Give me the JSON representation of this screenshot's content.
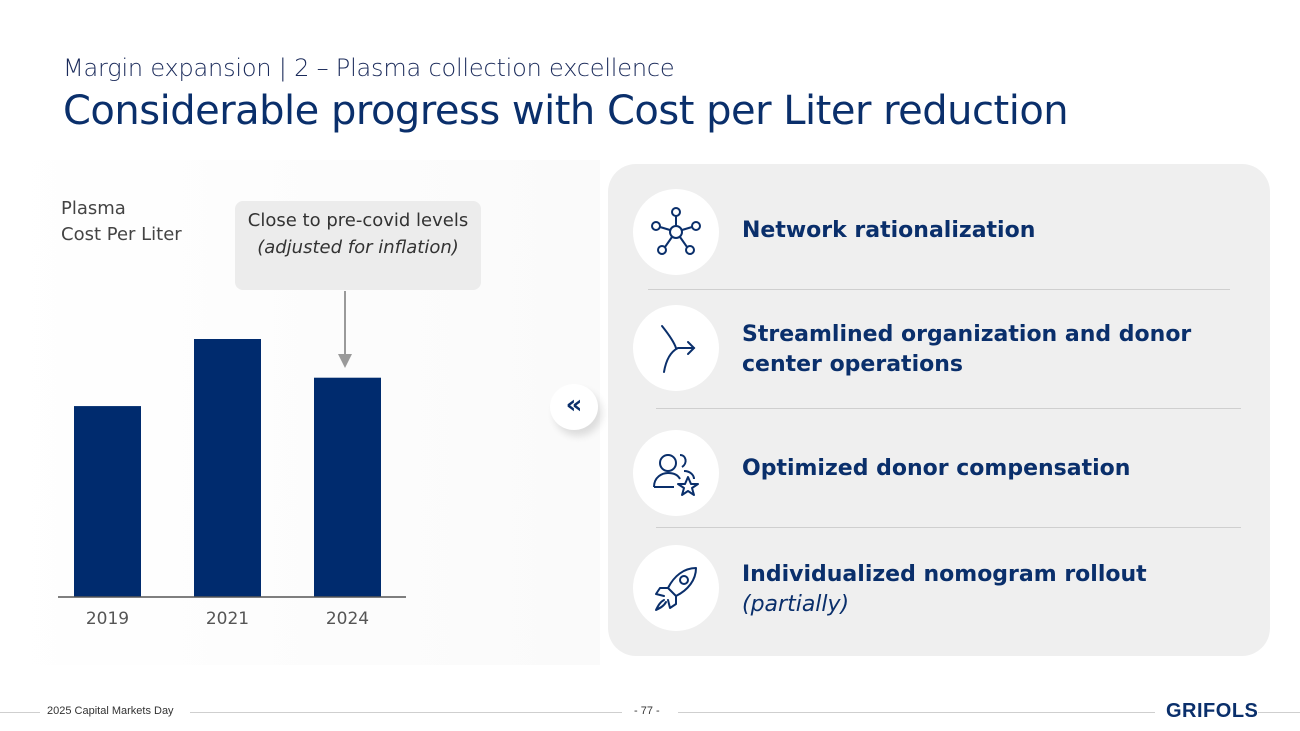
{
  "header": {
    "subtitle": "Margin expansion | 2 – Plasma collection excellence",
    "title": "Considerable progress with Cost per Liter reduction"
  },
  "chart_label": {
    "line1": "Plasma",
    "line2": "Cost Per Liter"
  },
  "callout": {
    "text": "Close to pre-covid levels ",
    "italic": "(adjusted for inflation)"
  },
  "chart_data": {
    "type": "bar",
    "title": "Plasma Cost Per Liter",
    "categories": [
      "2019",
      "2021",
      "2024"
    ],
    "values": [
      74,
      100,
      85
    ],
    "ylim": [
      0,
      100
    ],
    "xlabel": "",
    "ylabel": "",
    "bar_color": "#002b6e",
    "note": "No axis values shown; values are relative estimates"
  },
  "toggle": {
    "glyph": "«"
  },
  "items": [
    {
      "label": "Network rationalization",
      "icon": "network-icon"
    },
    {
      "label": "Streamlined organization and donor center operations",
      "icon": "merge-arrow-icon"
    },
    {
      "label": "Optimized donor compensation",
      "icon": "donor-star-icon"
    },
    {
      "label": "Individualized nomogram rollout",
      "italic": "(partially)",
      "icon": "rocket-icon"
    }
  ],
  "footer": {
    "event": "2025 Capital Markets Day",
    "page": "- 77 -",
    "logo": "GRIFOLS"
  },
  "colors": {
    "primary": "#0a2f6b",
    "panel": "#efefef"
  }
}
